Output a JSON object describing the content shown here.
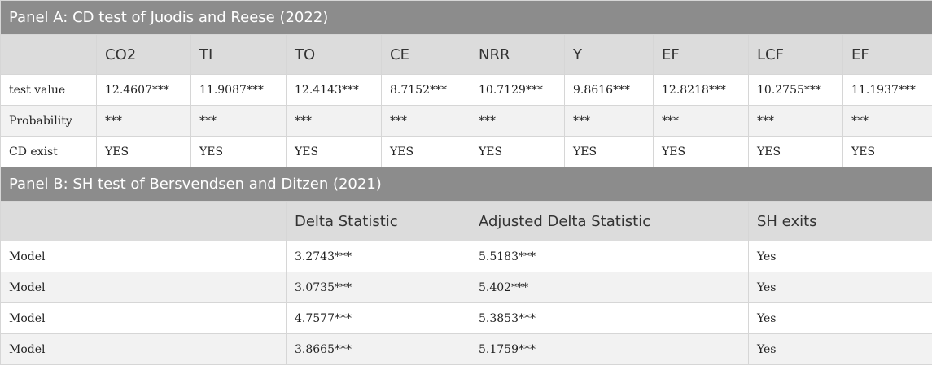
{
  "panel_a": {
    "title": "Panel A: CD test of Juodis and Reese (2022)",
    "headers": [
      "",
      "CO2",
      "TI",
      "TO",
      "CE",
      "NRR",
      "Y",
      "EF",
      "LCF",
      "EF"
    ],
    "rows": [
      [
        "test value",
        "12.4607***",
        "11.9087***",
        "12.4143***",
        "8.7152***",
        "10.7129***",
        "9.8616***",
        "12.8218***",
        "10.2755***",
        "11.1937***"
      ],
      [
        "Probability",
        "***",
        "***",
        "***",
        "***",
        "***",
        "***",
        "***",
        "***",
        "***"
      ],
      [
        "CD exist",
        "YES",
        "YES",
        "YES",
        "YES",
        "YES",
        "YES",
        "YES",
        "YES",
        "YES"
      ]
    ]
  },
  "panel_b": {
    "title": "Panel B: SH test of Bersvendsen and Ditzen (2021)",
    "headers": [
      "",
      "Delta Statistic",
      "Adjusted Delta Statistic",
      "SH exits"
    ],
    "rows": [
      [
        "Model",
        "3.2743***",
        "5.5183***",
        "Yes"
      ],
      [
        "Model",
        "3.0735***",
        "5.402***",
        "Yes"
      ],
      [
        "Model",
        "4.7577***",
        "5.3853***",
        "Yes"
      ],
      [
        "Model",
        "3.8665***",
        "5.1759***",
        "Yes"
      ]
    ]
  }
}
